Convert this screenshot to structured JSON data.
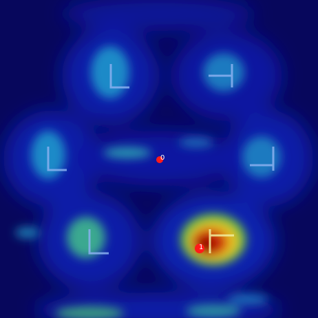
{
  "points": [
    {
      "label": "0"
    },
    {
      "label": "1"
    }
  ]
}
